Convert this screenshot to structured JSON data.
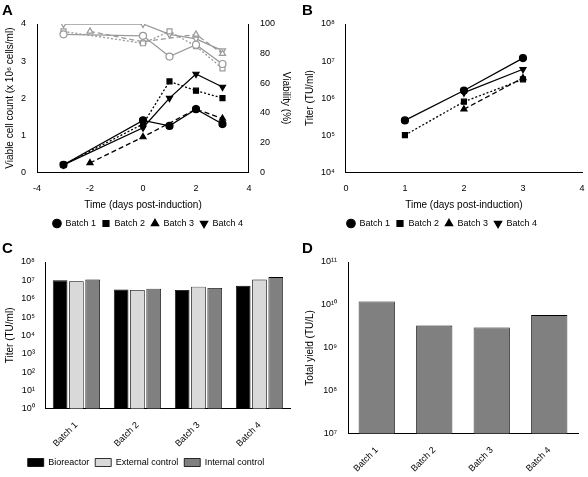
{
  "chart_data": [
    {
      "type": "line",
      "title": "A",
      "x_label": "Time (days post-induction)",
      "y_label": "Viable cell count (x 10⁶ cells/ml)",
      "y2_label": "Viability (%)",
      "xlim": [
        -4,
        4
      ],
      "xticks": [
        -4,
        -2,
        0,
        2,
        4
      ],
      "ylim": [
        0,
        4
      ],
      "yticks": [
        0,
        1,
        2,
        3,
        4
      ],
      "y2lim": [
        0,
        100
      ],
      "y2ticks": [
        0,
        20,
        40,
        60,
        80,
        100
      ],
      "grid": false,
      "legend": "bottom",
      "x": [
        -3,
        -2,
        0,
        1,
        2,
        3
      ],
      "series": [
        {
          "name": "Batch 1",
          "color": "#000000",
          "marker": "circle",
          "line_style": "solid",
          "values": [
            0.2,
            null,
            1.4,
            1.25,
            1.7,
            1.3
          ]
        },
        {
          "name": "Batch 2",
          "color": "#000000",
          "marker": "square",
          "line_style": "dotted",
          "values": [
            0.2,
            null,
            1.3,
            2.45,
            2.2,
            2.0
          ]
        },
        {
          "name": "Batch 3",
          "color": "#000000",
          "marker": "triangle",
          "line_style": "dashed",
          "values": [
            null,
            0.25,
            0.95,
            null,
            1.7,
            1.45
          ]
        },
        {
          "name": "Batch 4",
          "color": "#000000",
          "marker": "triangle_down",
          "line_style": "solid",
          "values": [
            0.2,
            null,
            1.2,
            2.0,
            2.65,
            2.3
          ]
        },
        {
          "name": "Batch 1",
          "color": "#999999",
          "marker": "open_circle",
          "line_style": "solid",
          "axis": "y2",
          "values": [
            93,
            null,
            92,
            78,
            86,
            73
          ]
        },
        {
          "name": "Batch 2",
          "color": "#999999",
          "marker": "open_square",
          "line_style": "dotted",
          "axis": "y2",
          "values": [
            95,
            null,
            87,
            95,
            85,
            70
          ]
        },
        {
          "name": "Batch 3",
          "color": "#999999",
          "marker": "open_triangle",
          "line_style": "dashed",
          "axis": "y2",
          "values": [
            null,
            95,
            88,
            null,
            93,
            80
          ]
        },
        {
          "name": "Batch 4",
          "color": "#999999",
          "marker": "open_triangle_down",
          "line_style": "solid",
          "axis": "y2",
          "values": [
            100,
            null,
            100,
            93,
            90,
            82
          ]
        }
      ]
    },
    {
      "type": "line",
      "title": "B",
      "x_label": "Time (days post-induction)",
      "y_label": "Titer (TU/ml)",
      "xlim": [
        0,
        4
      ],
      "xticks": [
        0,
        1,
        2,
        3,
        4
      ],
      "ylim": [
        10000,
        100000000
      ],
      "log": "y",
      "yticks": [
        {
          "value": 10000,
          "label": "10⁴"
        },
        {
          "value": 100000,
          "label": "10⁵"
        },
        {
          "value": 1000000,
          "label": "10⁶"
        },
        {
          "value": 10000000,
          "label": "10⁷"
        },
        {
          "value": 100000000,
          "label": "10⁸"
        }
      ],
      "grid": false,
      "legend": "bottom",
      "x": [
        1,
        2,
        3
      ],
      "series": [
        {
          "name": "Batch 1",
          "color": "#000000",
          "marker": "circle",
          "line_style": "solid",
          "values": [
            250000,
            1600000,
            12000000
          ]
        },
        {
          "name": "Batch 2",
          "color": "#000000",
          "marker": "square",
          "line_style": "dotted",
          "values": [
            100000,
            800000,
            3200000
          ]
        },
        {
          "name": "Batch 3",
          "color": "#000000",
          "marker": "triangle",
          "line_style": "dashed",
          "values": [
            null,
            500000,
            3500000
          ]
        },
        {
          "name": "Batch 4",
          "color": "#000000",
          "marker": "triangle_down",
          "line_style": "solid",
          "values": [
            null,
            1400000,
            6000000
          ]
        }
      ]
    },
    {
      "type": "bar",
      "title": "C",
      "y_label": "Titer (TU/ml)",
      "categories": [
        "Batch 1",
        "Batch 2",
        "Batch 3",
        "Batch 4"
      ],
      "ylim": [
        1,
        100000000
      ],
      "log": "y",
      "yticks": [
        {
          "value": 1,
          "label": "10⁰"
        },
        {
          "value": 10,
          "label": "10¹"
        },
        {
          "value": 100,
          "label": "10²"
        },
        {
          "value": 1000,
          "label": "10³"
        },
        {
          "value": 10000,
          "label": "10⁴"
        },
        {
          "value": 100000,
          "label": "10⁵"
        },
        {
          "value": 1000000,
          "label": "10⁶"
        },
        {
          "value": 10000000,
          "label": "10⁷"
        },
        {
          "value": 100000000,
          "label": "10⁸"
        }
      ],
      "grid": false,
      "legend": "bottom",
      "series": [
        {
          "name": "Bioreactor",
          "color": "#000000",
          "values": [
            10000000,
            3200000,
            3000000,
            5000000
          ]
        },
        {
          "name": "External control",
          "color": "#d9d9d9",
          "values": [
            9000000,
            3000000,
            4500000,
            11000000
          ]
        },
        {
          "name": "Internal control",
          "color": "#808080",
          "values": [
            11000000,
            3500000,
            3800000,
            15000000
          ]
        }
      ]
    },
    {
      "type": "bar",
      "title": "D",
      "y_label": "Total yield (TU/L)",
      "categories": [
        "Batch 1",
        "Batch 2",
        "Batch 3",
        "Batch 4"
      ],
      "ylim": [
        10000000,
        100000000000
      ],
      "log": "y",
      "yticks": [
        {
          "value": 10000000,
          "label": "10⁷"
        },
        {
          "value": 100000000,
          "label": "10⁸"
        },
        {
          "value": 1000000000,
          "label": "10⁹"
        },
        {
          "value": 10000000000,
          "label": "10¹⁰"
        },
        {
          "value": 100000000000,
          "label": "10¹¹"
        }
      ],
      "grid": false,
      "values": [
        12000000000,
        3300000000,
        3000000000,
        5800000000
      ],
      "color": "#808080"
    }
  ]
}
